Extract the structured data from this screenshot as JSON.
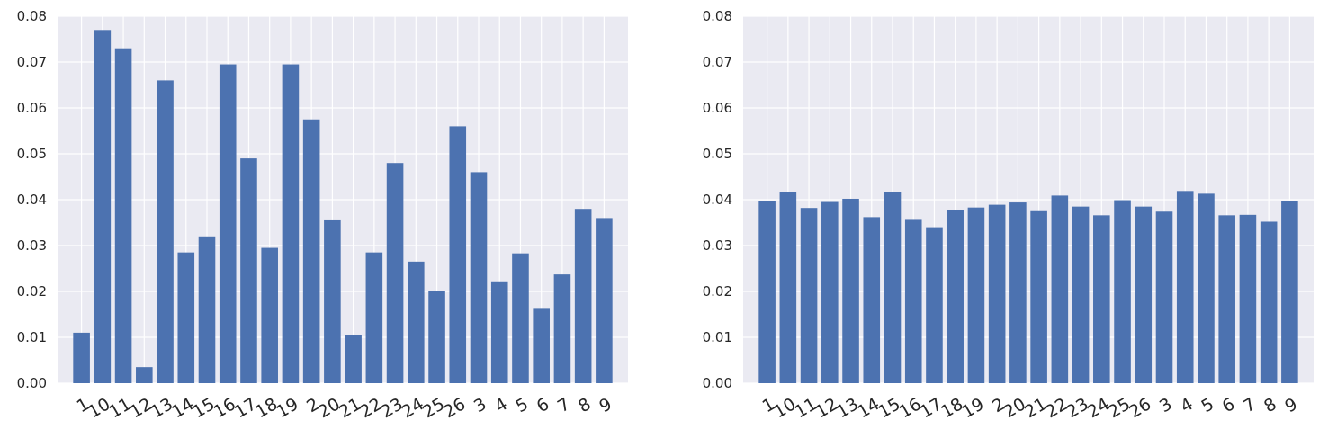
{
  "chart_data": [
    {
      "type": "bar",
      "title": "",
      "xlabel": "",
      "ylabel": "",
      "ylim": [
        0,
        0.08
      ],
      "yticks": [
        "0.00",
        "0.01",
        "0.02",
        "0.03",
        "0.04",
        "0.05",
        "0.06",
        "0.07",
        "0.08"
      ],
      "grid": true,
      "categories": [
        "1",
        "10",
        "11",
        "12",
        "13",
        "14",
        "15",
        "16",
        "17",
        "18",
        "19",
        "2",
        "20",
        "21",
        "22",
        "23",
        "24",
        "25",
        "26",
        "3",
        "4",
        "5",
        "6",
        "7",
        "8",
        "9"
      ],
      "values": [
        0.011,
        0.077,
        0.073,
        0.0035,
        0.066,
        0.0285,
        0.032,
        0.0695,
        0.049,
        0.0295,
        0.0695,
        0.0575,
        0.0355,
        0.0105,
        0.0285,
        0.048,
        0.0265,
        0.02,
        0.056,
        0.046,
        0.0222,
        0.0283,
        0.0162,
        0.0237,
        0.038,
        0.036
      ]
    },
    {
      "type": "bar",
      "title": "",
      "xlabel": "",
      "ylabel": "",
      "ylim": [
        0,
        0.08
      ],
      "yticks": [
        "0.00",
        "0.01",
        "0.02",
        "0.03",
        "0.04",
        "0.05",
        "0.06",
        "0.07",
        "0.08"
      ],
      "grid": true,
      "categories": [
        "1",
        "10",
        "11",
        "12",
        "13",
        "14",
        "15",
        "16",
        "17",
        "18",
        "19",
        "2",
        "20",
        "21",
        "22",
        "23",
        "24",
        "25",
        "26",
        "3",
        "4",
        "5",
        "6",
        "7",
        "8",
        "9"
      ],
      "values": [
        0.0397,
        0.0417,
        0.0382,
        0.0395,
        0.0402,
        0.0362,
        0.0417,
        0.0356,
        0.034,
        0.0377,
        0.0383,
        0.0389,
        0.0394,
        0.0375,
        0.0409,
        0.0385,
        0.0366,
        0.0399,
        0.0385,
        0.0374,
        0.0419,
        0.0413,
        0.0366,
        0.0367,
        0.0352,
        0.0397
      ]
    }
  ],
  "colors": {
    "figure_background": "#ffffff",
    "axes_background": "#eaeaf2",
    "grid": "#ffffff",
    "bar": "#4c72b0",
    "text": "#262626"
  }
}
